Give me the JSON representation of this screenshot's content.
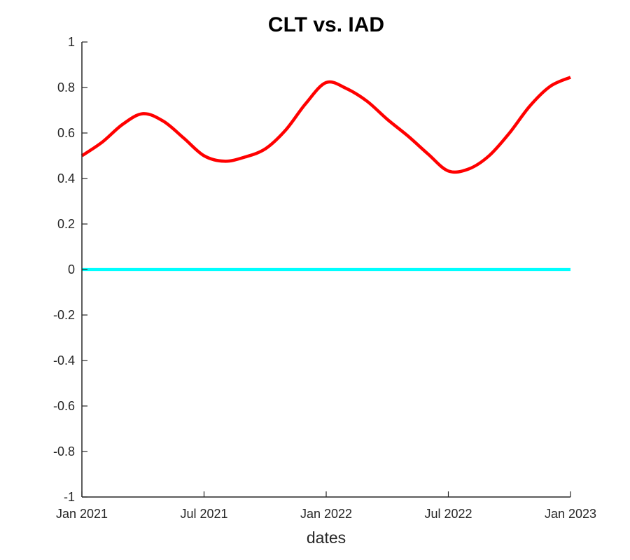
{
  "figure": {
    "title": "CLT vs. IAD",
    "xlabel": "dates",
    "background_color": "#FFFFFF",
    "axis_color": "#262626",
    "title_color": "#000000"
  },
  "chart_data": {
    "type": "line",
    "title": "CLT vs. IAD",
    "xlabel": "dates",
    "ylabel": "",
    "grid": false,
    "legend_position": "none",
    "xlim_months": [
      0,
      24
    ],
    "ylim": [
      -1,
      1
    ],
    "x_tick_labels": [
      "Jan 2021",
      "Jul 2021",
      "Jan 2022",
      "Jul 2022",
      "Jan 2023"
    ],
    "x_tick_positions_months": [
      0,
      6,
      12,
      18,
      24
    ],
    "y_tick_values": [
      -1,
      -0.8,
      -0.6,
      -0.4,
      -0.2,
      0,
      0.2,
      0.4,
      0.6,
      0.8,
      1
    ],
    "y_tick_labels": [
      "-1",
      "-0.8",
      "-0.6",
      "-0.4",
      "-0.2",
      "0",
      "0.2",
      "0.4",
      "0.6",
      "0.8",
      "1"
    ],
    "series": [
      {
        "name": "red-curve",
        "color": "#FF0000",
        "line_width": 4.5,
        "smooth": true,
        "x_months": [
          0,
          1,
          2,
          3,
          4,
          5,
          6,
          7,
          8,
          9,
          10,
          11,
          12,
          13,
          14,
          15,
          16,
          17,
          18,
          19,
          20,
          21,
          22,
          23,
          24
        ],
        "values": [
          0.5,
          0.56,
          0.638,
          0.685,
          0.652,
          0.578,
          0.5,
          0.476,
          0.494,
          0.53,
          0.612,
          0.73,
          0.822,
          0.795,
          0.74,
          0.66,
          0.588,
          0.508,
          0.433,
          0.442,
          0.5,
          0.6,
          0.718,
          0.805,
          0.845
        ]
      },
      {
        "name": "cyan-zero-line",
        "color": "#00FFFF",
        "line_width": 4.2,
        "smooth": false,
        "x_months": [
          0,
          24
        ],
        "values": [
          0,
          0
        ]
      }
    ]
  }
}
